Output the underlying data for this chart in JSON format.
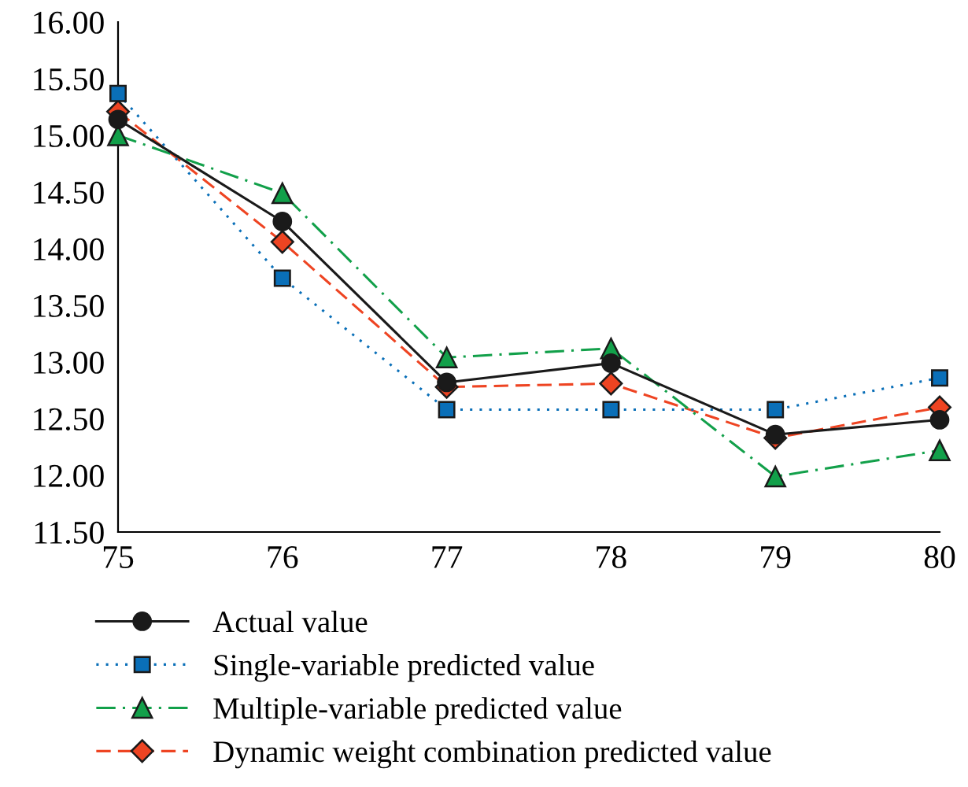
{
  "chart_data": {
    "type": "line",
    "x": [
      75,
      76,
      77,
      78,
      79,
      80
    ],
    "series": [
      {
        "name": "Actual value",
        "color": "#1a1a1a",
        "marker": "circle",
        "line_style": "solid",
        "values": [
          15.14,
          14.24,
          12.82,
          12.99,
          12.36,
          12.49
        ]
      },
      {
        "name": "Single-variable predicted value",
        "color": "#0a6fb8",
        "marker": "square",
        "line_style": "dotted",
        "values": [
          15.37,
          13.74,
          12.58,
          12.58,
          12.58,
          12.86
        ]
      },
      {
        "name": "Multiple-variable predicted value",
        "color": "#12a04a",
        "marker": "triangle",
        "line_style": "dashdot",
        "values": [
          15.0,
          14.49,
          13.04,
          13.12,
          11.99,
          12.22
        ]
      },
      {
        "name": "Dynamic weight combination predicted value",
        "color": "#ee4422",
        "marker": "diamond",
        "line_style": "dashed",
        "values": [
          15.21,
          14.06,
          12.78,
          12.81,
          12.33,
          12.6
        ]
      }
    ],
    "xlim": [
      75,
      80
    ],
    "xticks": [
      75,
      76,
      77,
      78,
      79,
      80
    ],
    "ylim": [
      11.5,
      16.0
    ],
    "yticks": [
      {
        "value": 11.5,
        "label": "11.50"
      },
      {
        "value": 12.0,
        "label": "12.00"
      },
      {
        "value": 12.5,
        "label": "12.50"
      },
      {
        "value": 13.0,
        "label": "13.00"
      },
      {
        "value": 13.5,
        "label": "13.50"
      },
      {
        "value": 14.0,
        "label": "14.00"
      },
      {
        "value": 14.5,
        "label": "14.50"
      },
      {
        "value": 15.0,
        "label": "15.00"
      },
      {
        "value": 15.5,
        "label": "15.50"
      },
      {
        "value": 16.0,
        "label": "16.00"
      }
    ],
    "grid": false,
    "legend": "bottom"
  }
}
